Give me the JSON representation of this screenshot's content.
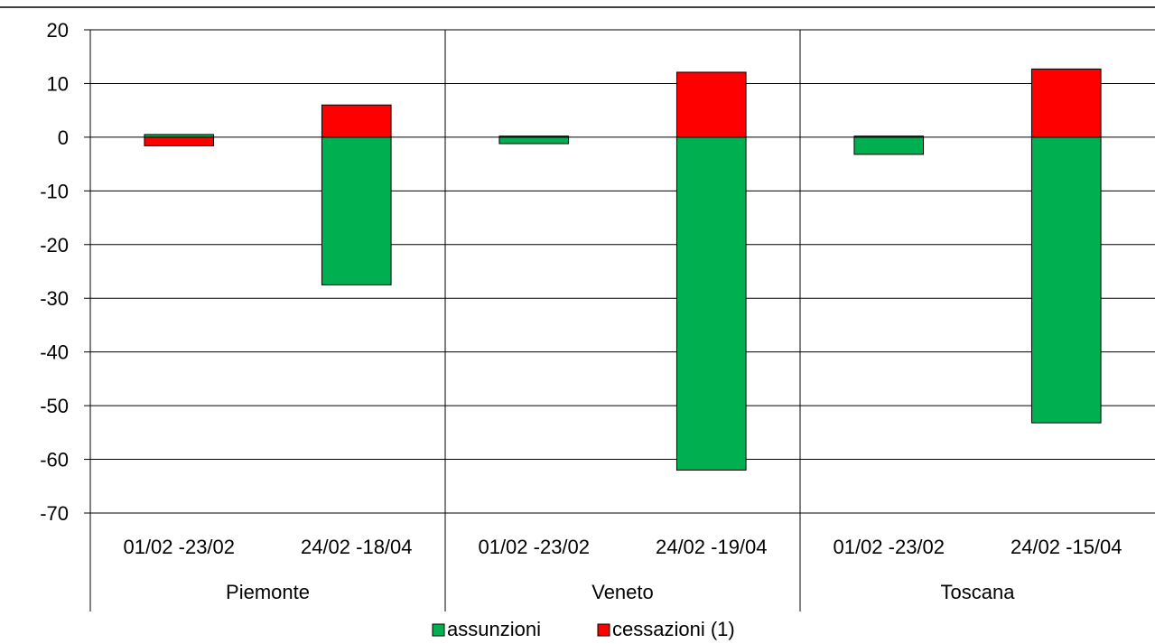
{
  "chart_data": {
    "type": "bar",
    "stacked": true,
    "title": "",
    "xlabel": "",
    "ylabel": "",
    "ylim": [
      -70,
      20
    ],
    "yticks": [
      20,
      10,
      0,
      -10,
      -20,
      -30,
      -40,
      -50,
      -60,
      -70
    ],
    "grid": true,
    "legend_position": "bottom",
    "groups": [
      {
        "name": "Piemonte",
        "categories": [
          "01/02 -23/02",
          "24/02 -18/04"
        ]
      },
      {
        "name": "Veneto",
        "categories": [
          "01/02 -23/02",
          "24/02 -19/04"
        ]
      },
      {
        "name": "Toscana",
        "categories": [
          "01/02 -23/02",
          "24/02 -15/04"
        ]
      }
    ],
    "categories": [
      "01/02 -23/02",
      "24/02 -18/04",
      "01/02 -23/02",
      "24/02 -19/04",
      "01/02 -23/02",
      "24/02 -15/04"
    ],
    "series": [
      {
        "name": "assunzioni",
        "color": "#00B050",
        "values": [
          0.5,
          -27.5,
          -1.2,
          -62.0,
          -3.2,
          -53.2
        ]
      },
      {
        "name": "cessazioni (1)",
        "color": "#FF0000",
        "values": [
          -1.6,
          6.0,
          0.2,
          12.1,
          0.2,
          12.7
        ]
      }
    ]
  }
}
